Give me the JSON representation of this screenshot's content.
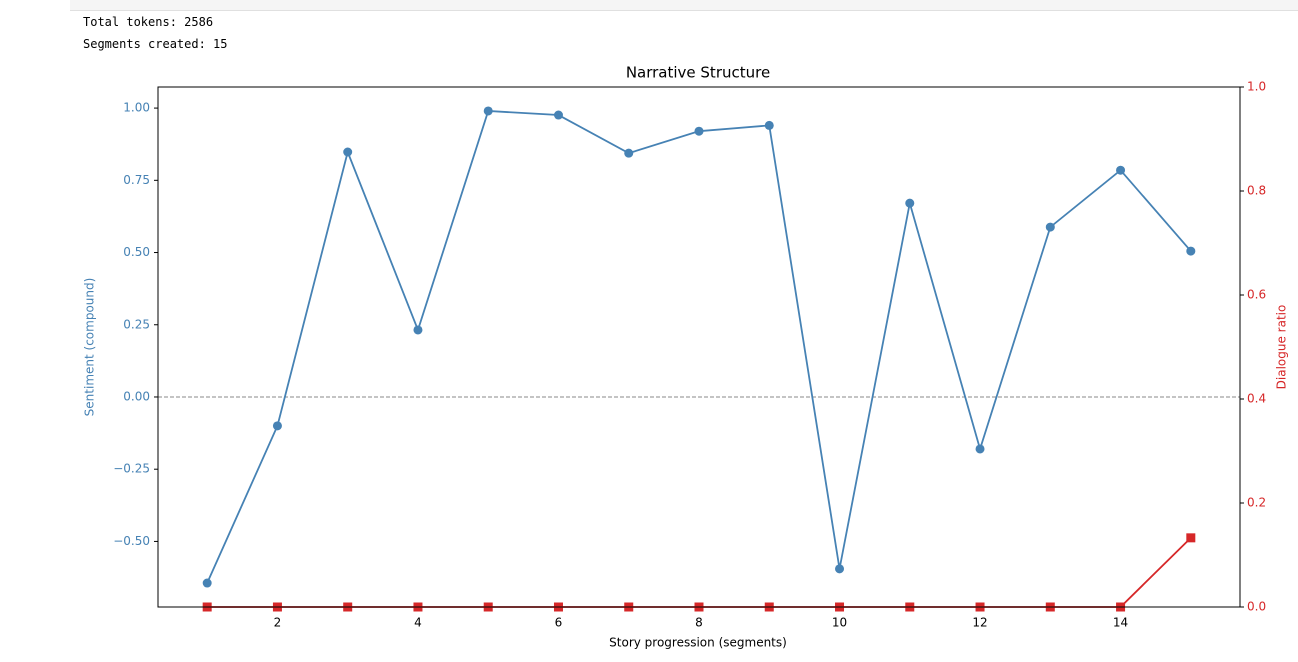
{
  "output": {
    "lines": [
      "Total tokens: 2586",
      "Segments created: 15"
    ]
  },
  "chart_data": {
    "type": "line",
    "title": "Narrative Structure",
    "x_label": "Story progression (segments)",
    "y_label": "Sentiment (compound)",
    "y2_label": "Dialogue ratio",
    "x": [
      1,
      2,
      3,
      4,
      5,
      6,
      7,
      8,
      9,
      10,
      11,
      12,
      13,
      14,
      15
    ],
    "series": [
      {
        "name": "Sentiment",
        "color": "#4682b4",
        "marker": "circle",
        "axis": "y",
        "values": [
          -0.644,
          -0.1,
          0.848,
          0.232,
          0.99,
          0.976,
          0.844,
          0.92,
          0.94,
          -0.595,
          0.671,
          -0.18,
          0.588,
          0.785,
          0.505
        ]
      },
      {
        "name": "Dialogue ratio",
        "color": "#d62728",
        "marker": "square",
        "axis": "y2",
        "values": [
          0,
          0,
          0,
          0,
          0,
          0,
          0,
          0,
          0,
          0,
          0,
          0,
          0,
          0,
          0.133
        ]
      }
    ],
    "hline": 0,
    "xlim": [
      0.3,
      15.7
    ],
    "xticks": [
      2,
      4,
      6,
      8,
      10,
      12,
      14
    ],
    "ylim": [
      -0.727,
      1.073
    ],
    "yticks": [
      {
        "value": -0.5,
        "label": "−0.50"
      },
      {
        "value": -0.25,
        "label": "−0.25"
      },
      {
        "value": 0,
        "label": "0.00"
      },
      {
        "value": 0.25,
        "label": "0.25"
      },
      {
        "value": 0.5,
        "label": "0.50"
      },
      {
        "value": 0.75,
        "label": "0.75"
      },
      {
        "value": 1,
        "label": "1.00"
      }
    ],
    "y2lim": [
      0,
      1
    ],
    "y2ticks": [
      {
        "value": 0,
        "label": "0.0"
      },
      {
        "value": 0.2,
        "label": "0.2"
      },
      {
        "value": 0.4,
        "label": "0.4"
      },
      {
        "value": 0.6,
        "label": "0.6"
      },
      {
        "value": 0.8,
        "label": "0.8"
      },
      {
        "value": 1,
        "label": "1.0"
      }
    ]
  }
}
